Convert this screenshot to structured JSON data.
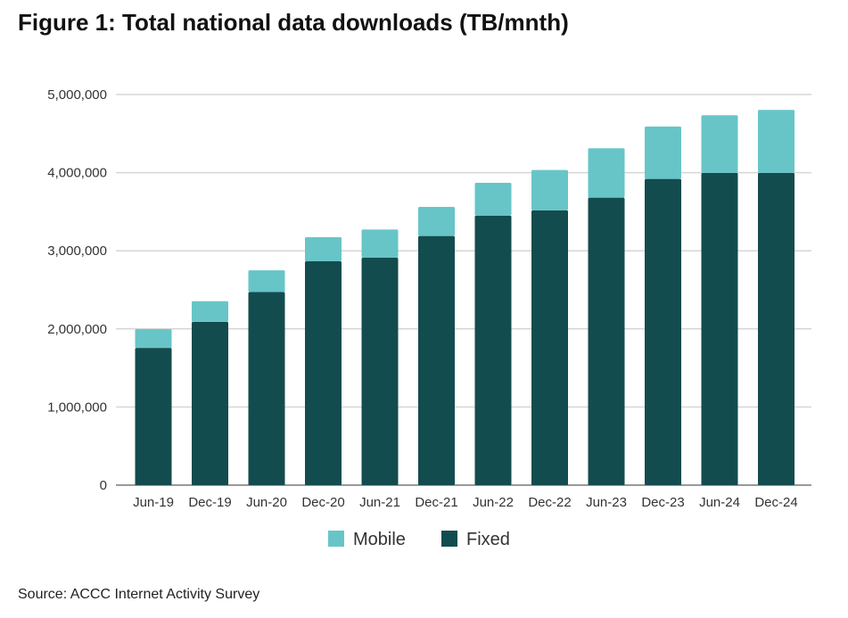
{
  "chart_data": {
    "type": "bar",
    "stacked": true,
    "title": "Figure 1: Total national data downloads (TB/mnth)",
    "source": "Source: ACCC Internet Activity Survey",
    "categories": [
      "Jun-19",
      "Dec-19",
      "Jun-20",
      "Dec-20",
      "Jun-21",
      "Dec-21",
      "Jun-22",
      "Dec-22",
      "Jun-23",
      "Dec-23",
      "Jun-24",
      "Dec-24"
    ],
    "series": [
      {
        "name": "Fixed",
        "color": "#134c4e",
        "values": [
          1757000,
          2091000,
          2472000,
          2865000,
          2911000,
          3189000,
          3451000,
          3517000,
          3680000,
          3920000,
          3997000,
          3997000
        ]
      },
      {
        "name": "Mobile",
        "color": "#67c5c7",
        "values": [
          240000,
          263000,
          278000,
          308000,
          361000,
          373000,
          419000,
          517000,
          632000,
          671000,
          737000,
          806000
        ]
      }
    ],
    "ylim": [
      0,
      5000000
    ],
    "yticks": [
      "0",
      "1,000,000",
      "2,000,000",
      "3,000,000",
      "4,000,000",
      "5,000,000"
    ],
    "legend": {
      "position": "bottom",
      "items": [
        "Mobile",
        "Fixed"
      ]
    },
    "grid": true
  }
}
